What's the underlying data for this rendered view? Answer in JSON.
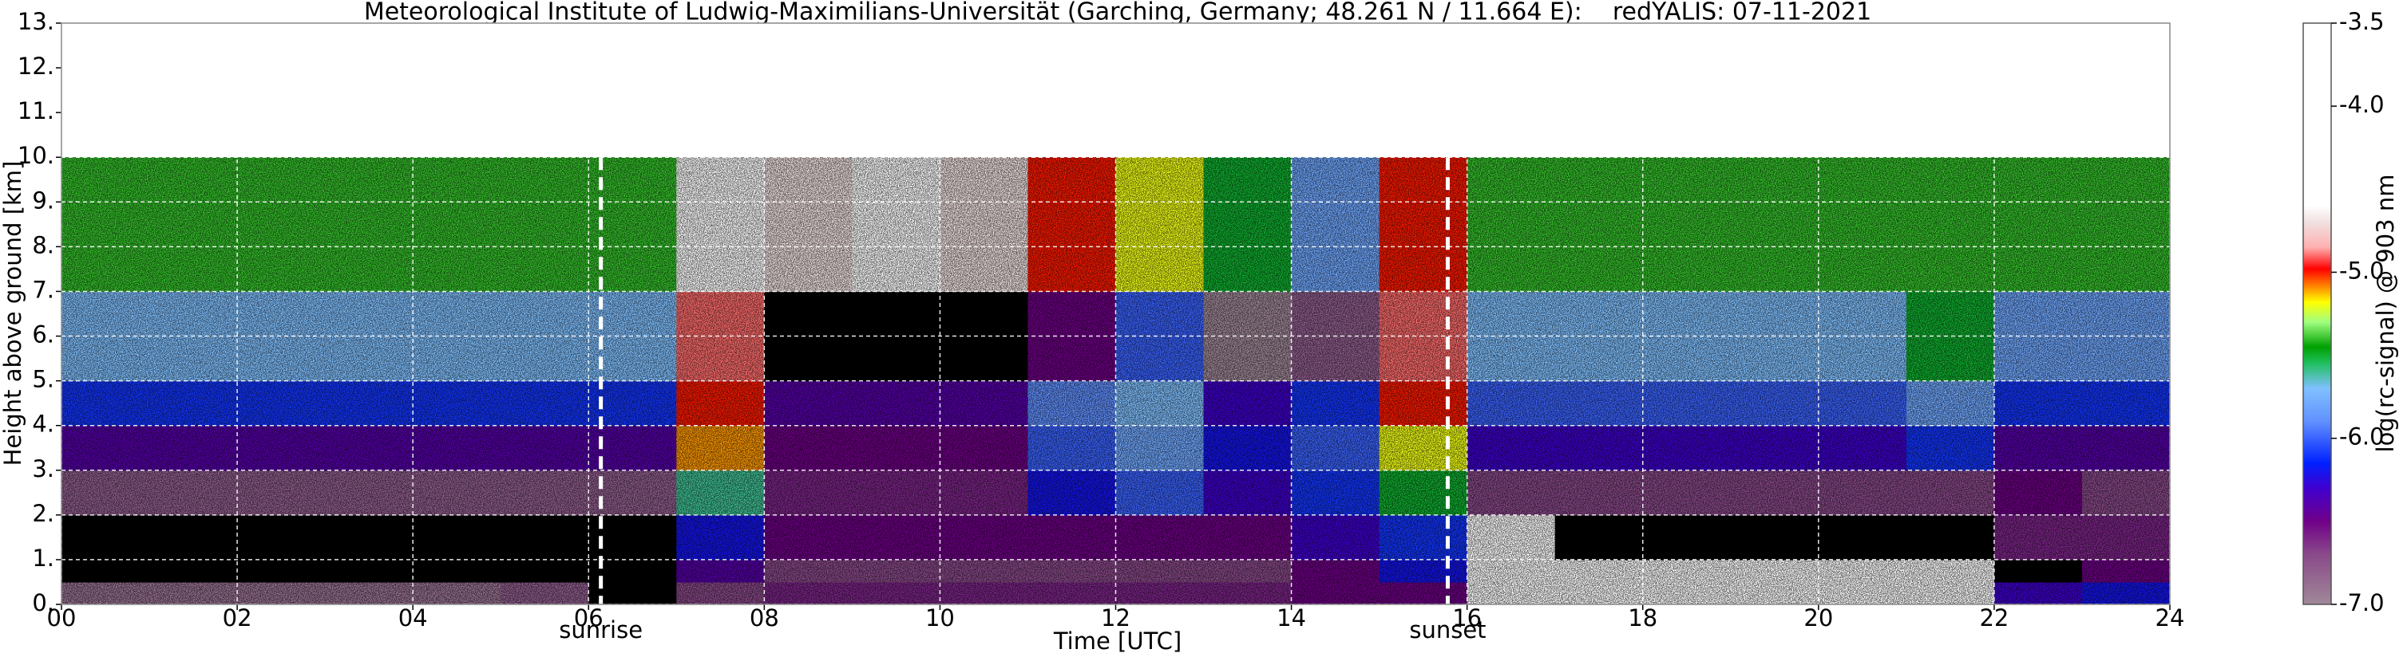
{
  "chart_data": {
    "type": "heatmap",
    "title": "Meteorological Institute of Ludwig-Maximilians-Universität (Garching, Germany; 48.261 N / 11.664 E):    redYALIS: 07-11-2021",
    "xlabel": "Time [UTC]",
    "ylabel": "Height above ground [km]",
    "xlim": [
      0,
      24
    ],
    "ylim": [
      0,
      13
    ],
    "xticks": [
      {
        "value": 0,
        "label": "00"
      },
      {
        "value": 2,
        "label": "02"
      },
      {
        "value": 4,
        "label": "04"
      },
      {
        "value": 6,
        "label": "06"
      },
      {
        "value": 8,
        "label": "08"
      },
      10,
      12,
      14,
      16,
      18,
      20,
      22,
      24
    ],
    "yticks": [
      {
        "value": 0,
        "label": "0."
      },
      {
        "value": 1,
        "label": "1."
      },
      {
        "value": 2,
        "label": "2."
      },
      {
        "value": 3,
        "label": "3."
      },
      {
        "value": 4,
        "label": "4."
      },
      {
        "value": 5,
        "label": "5."
      },
      {
        "value": 6,
        "label": "6."
      },
      {
        "value": 7,
        "label": "7."
      },
      {
        "value": 8,
        "label": "8."
      },
      {
        "value": 9,
        "label": "9."
      },
      {
        "value": 10,
        "label": "10."
      },
      {
        "value": 11,
        "label": "11."
      },
      {
        "value": 12,
        "label": "12."
      },
      {
        "value": 13,
        "label": "13."
      }
    ],
    "grid": true,
    "xbins": [
      0,
      1,
      2,
      3,
      4,
      5,
      6,
      7,
      8,
      9,
      10,
      11,
      12,
      13,
      14,
      15,
      16,
      17,
      18,
      19,
      20,
      21,
      22,
      23,
      24
    ],
    "ybins": [
      0,
      0.5,
      1,
      2,
      3,
      4,
      5,
      7,
      10
    ],
    "z": [
      [
        -6.9,
        -6.9,
        -6.9,
        -6.9,
        -6.9,
        -6.8,
        -7.1,
        -6.7,
        -6.6,
        -6.6,
        -6.6,
        -6.6,
        -6.6,
        -6.6,
        -6.5,
        -6.5,
        -4.5,
        -4.5,
        -4.5,
        -4.5,
        -4.5,
        -4.5,
        -6.3,
        -6.2
      ],
      [
        -7.3,
        -7.3,
        -7.3,
        -7.3,
        -7.3,
        -7.3,
        -7.3,
        -6.4,
        -6.7,
        -6.7,
        -6.7,
        -6.7,
        -6.7,
        -6.7,
        -6.5,
        -6.2,
        -4.5,
        -4.6,
        -4.6,
        -4.6,
        -4.6,
        -4.6,
        -7.2,
        -6.5
      ],
      [
        -7.2,
        -7.2,
        -7.2,
        -7.2,
        -7.2,
        -7.2,
        -7.2,
        -6.2,
        -6.5,
        -6.5,
        -6.5,
        -6.5,
        -6.5,
        -6.5,
        -6.3,
        -6.1,
        -4.5,
        -7.2,
        -7.2,
        -7.2,
        -7.2,
        -7.2,
        -6.6,
        -6.6
      ],
      [
        -6.8,
        -6.8,
        -6.8,
        -6.8,
        -6.8,
        -6.8,
        -6.8,
        -5.6,
        -6.6,
        -6.6,
        -6.6,
        -6.2,
        -6.0,
        -6.3,
        -6.1,
        -5.5,
        -6.7,
        -6.7,
        -6.7,
        -6.7,
        -6.7,
        -6.7,
        -6.5,
        -6.7
      ],
      [
        -6.4,
        -6.4,
        -6.4,
        -6.4,
        -6.4,
        -6.4,
        -6.4,
        -5.1,
        -6.5,
        -6.5,
        -6.5,
        -6.0,
        -5.8,
        -6.2,
        -6.0,
        -5.2,
        -6.3,
        -6.3,
        -6.3,
        -6.3,
        -6.3,
        -6.1,
        -6.4,
        -6.4
      ],
      [
        -6.1,
        -6.1,
        -6.1,
        -6.1,
        -6.1,
        -6.1,
        -6.1,
        -5.0,
        -6.4,
        -6.4,
        -6.4,
        -5.9,
        -5.7,
        -6.3,
        -6.1,
        -5.0,
        -6.0,
        -6.0,
        -6.0,
        -6.0,
        -6.0,
        -5.8,
        -6.1,
        -6.1
      ],
      [
        -5.7,
        -5.7,
        -5.7,
        -5.7,
        -5.7,
        -5.7,
        -5.7,
        -4.9,
        -7.1,
        -7.1,
        -7.1,
        -6.5,
        -6.0,
        -7.0,
        -6.8,
        -4.9,
        -5.7,
        -5.7,
        -5.7,
        -5.7,
        -5.7,
        -5.5,
        -5.8,
        -5.8
      ],
      [
        -5.4,
        -5.4,
        -5.4,
        -5.4,
        -5.4,
        -5.4,
        -5.4,
        -4.6,
        -4.7,
        -4.6,
        -4.7,
        -5.0,
        -5.2,
        -5.5,
        -5.8,
        -5.0,
        -5.4,
        -5.4,
        -5.4,
        -5.4,
        -5.4,
        -5.4,
        -5.4,
        -5.4
      ]
    ],
    "colorbar": {
      "label": "log(rc-signal) @ 903 nm",
      "lim": [
        -7,
        -3.5
      ],
      "ticks": [
        {
          "value": -7,
          "label": "-7.0"
        },
        {
          "value": -6,
          "label": "-6.0"
        },
        {
          "value": -5,
          "label": "-5.0"
        },
        {
          "value": -4,
          "label": "-4.0"
        },
        -3.5
      ],
      "colorscale": [
        [
          -7,
          "#a08898"
        ],
        [
          -6.7,
          "#8a4a8a"
        ],
        [
          -6.5,
          "#700088"
        ],
        [
          -6.3,
          "#4000d0"
        ],
        [
          -6.15,
          "#0020ff"
        ],
        [
          -5.9,
          "#6090ff"
        ],
        [
          -5.7,
          "#80c0ff"
        ],
        [
          -5.55,
          "#20c060"
        ],
        [
          -5.45,
          "#00a000"
        ],
        [
          -5.3,
          "#a0ff80"
        ],
        [
          -5.18,
          "#ffff00"
        ],
        [
          -5.08,
          "#ff8000"
        ],
        [
          -4.98,
          "#ff0000"
        ],
        [
          -4.85,
          "#ffb0b0"
        ],
        [
          -4.7,
          "#f0e0e0"
        ],
        [
          -4.6,
          "#ffffff"
        ]
      ],
      "under_color": "#000000"
    },
    "annotations": [
      {
        "text": "sunrise",
        "x": 6.14
      },
      {
        "text": "sunset",
        "x": 15.78
      }
    ]
  }
}
